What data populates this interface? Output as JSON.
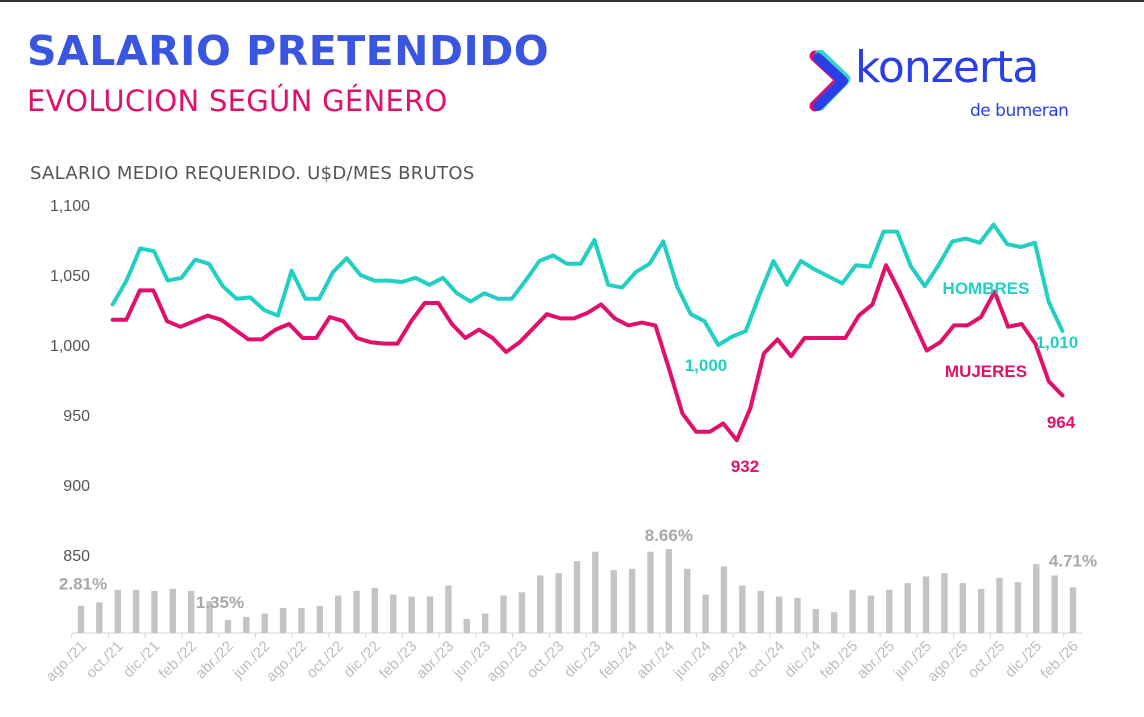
{
  "header": {
    "title": "SALARIO PRETENDIDO",
    "subtitle": "EVOLUCION SEGÚN GÉNERO",
    "caption": "SALARIO MEDIO REQUERIDO. U$D/MES BRUTOS"
  },
  "logo": {
    "word": "konzerta",
    "sub": "de bumeran"
  },
  "colors": {
    "title": "#3a56e0",
    "subtitle": "#e0106b",
    "hombres": "#22cfc3",
    "mujeres": "#e0106b",
    "bars": "#c4c4c4",
    "logo": "#2b3fe6"
  },
  "chart_data": {
    "type": "line+bar",
    "ylabel": "SALARIO MEDIO REQUERIDO. U$D/MES BRUTOS",
    "ylim": [
      850,
      1100
    ],
    "yticks": [
      "1,100",
      "1,050",
      "1,000",
      "950",
      "900",
      "850"
    ],
    "ytick_values": [
      1100,
      1050,
      1000,
      950,
      900,
      850
    ],
    "grid": false,
    "series": [
      {
        "name": "HOMBRES",
        "values": [
          1029,
          1046,
          1069,
          1067,
          1046,
          1048,
          1061,
          1058,
          1042,
          1033,
          1034,
          1025,
          1021,
          1053,
          1033,
          1033,
          1052,
          1062,
          1050,
          1046,
          1046,
          1045,
          1048,
          1043,
          1048,
          1037,
          1031,
          1037,
          1033,
          1033,
          1046,
          1060,
          1064,
          1058,
          1058,
          1075,
          1043,
          1041,
          1052,
          1058,
          1074,
          1042,
          1022,
          1017,
          1000,
          1006,
          1010,
          1036,
          1060,
          1043,
          1060,
          1054,
          1049,
          1044,
          1057,
          1056,
          1081,
          1081,
          1056,
          1042,
          1057,
          1074,
          1076,
          1073,
          1086,
          1072,
          1070,
          1073,
          1031,
          1010
        ],
        "end_label": "1,010",
        "min_label": "1,000"
      },
      {
        "name": "MUJERES",
        "values": [
          1018,
          1018,
          1039,
          1039,
          1017,
          1013,
          1017,
          1021,
          1018,
          1011,
          1004,
          1004,
          1011,
          1015,
          1005,
          1005,
          1020,
          1017,
          1005,
          1002,
          1001,
          1001,
          1017,
          1030,
          1030,
          1015,
          1005,
          1011,
          1005,
          995,
          1002,
          1012,
          1022,
          1019,
          1019,
          1023,
          1029,
          1019,
          1014,
          1016,
          1014,
          983,
          951,
          938,
          938,
          944,
          932,
          955,
          994,
          1004,
          992,
          1005,
          1005,
          1005,
          1005,
          1021,
          1029,
          1057,
          1038,
          1017,
          996,
          1002,
          1014,
          1014,
          1020,
          1038,
          1013,
          1015,
          1001,
          974,
          964
        ],
        "end_label": "964",
        "min_label": "932"
      }
    ],
    "bars": {
      "categories": [
        "ago./21",
        "sep./21",
        "oct./21",
        "nov./21",
        "dic./21",
        "ene./22",
        "feb./22",
        "mar./22",
        "abr./22",
        "may./22",
        "jun./22",
        "jul./22",
        "ago./22",
        "sep./22",
        "oct./22",
        "nov./22",
        "dic./22",
        "ene./23",
        "feb./23",
        "mar./23",
        "abr./23",
        "may./23",
        "jun./23",
        "jul./23",
        "ago./23",
        "sep./23",
        "oct./23",
        "nov./23",
        "dic./23",
        "ene./24",
        "feb./24",
        "mar./24",
        "abr./24",
        "may./24",
        "jun./24",
        "jul./24",
        "ago./24",
        "sep./24",
        "oct./24",
        "nov./24",
        "dic./24",
        "ene./25",
        "feb./25",
        "mar./25",
        "abr./25",
        "may./25",
        "jun./25",
        "jul./25",
        "ago./25",
        "sep./25",
        "oct./25",
        "nov./25",
        "dic./25",
        "ene./26",
        "feb./26"
      ],
      "tick_labels": [
        "ago./21",
        "oct./21",
        "dic./21",
        "feb./22",
        "abr./22",
        "jun./22",
        "ago./22",
        "oct./22",
        "dic./22",
        "feb./23",
        "abr./23",
        "jun./23",
        "ago./23",
        "oct./23",
        "dic./23",
        "feb./24",
        "abr./24",
        "jun./24",
        "ago./24",
        "oct./24",
        "dic./24",
        "feb./25",
        "abr./25",
        "jun./25",
        "ago./25",
        "oct./25",
        "dic./25",
        "feb./26"
      ],
      "unit": "%",
      "values": [
        2.81,
        3.17,
        4.45,
        4.45,
        4.34,
        4.55,
        4.34,
        3.3,
        1.35,
        1.66,
        2.0,
        2.59,
        2.59,
        2.79,
        3.86,
        4.34,
        4.66,
        3.97,
        3.76,
        3.76,
        4.9,
        1.45,
        2.0,
        3.86,
        4.2,
        5.93,
        6.17,
        7.41,
        8.38,
        6.48,
        6.62,
        8.38,
        8.66,
        6.62,
        3.97,
        6.86,
        4.9,
        4.34,
        3.76,
        3.62,
        2.48,
        2.14,
        4.45,
        3.86,
        4.45,
        5.14,
        5.83,
        6.17,
        5.14,
        4.55,
        5.69,
        5.24,
        7.1,
        5.93,
        4.71
      ],
      "labels": [
        {
          "index": 0,
          "text": "2.81%"
        },
        {
          "index": 8,
          "text": "1.35%"
        },
        {
          "index": 32,
          "text": "8.66%"
        },
        {
          "index": 54,
          "text": "4.71%"
        }
      ]
    }
  }
}
